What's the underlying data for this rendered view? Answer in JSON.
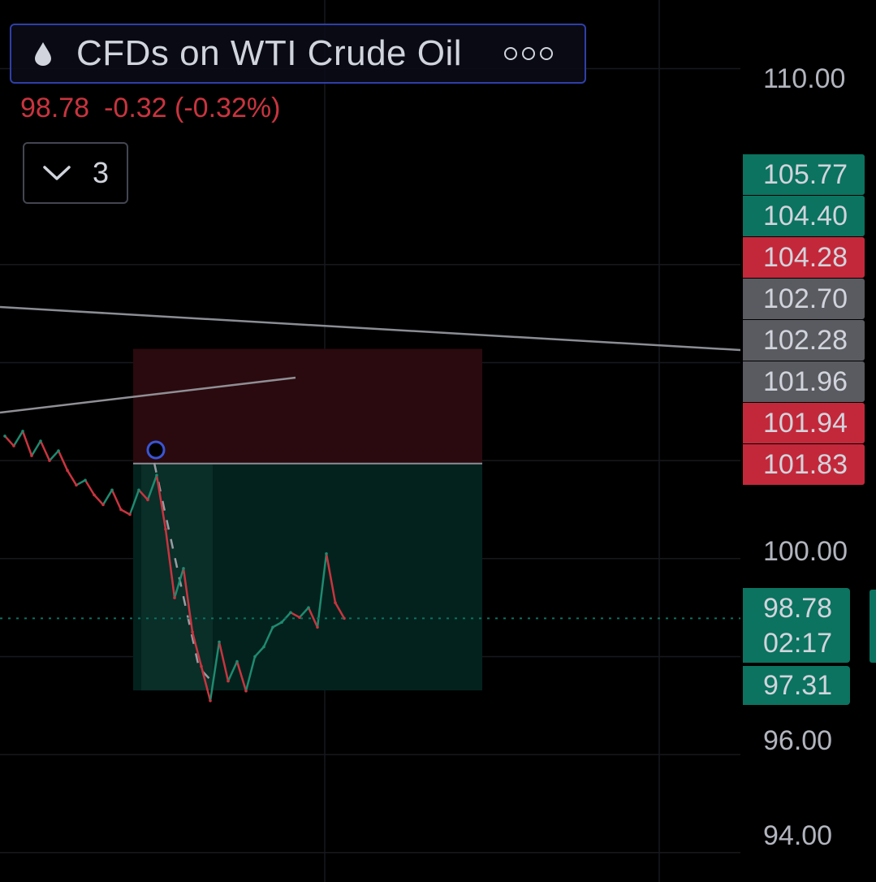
{
  "header": {
    "symbol_icon": "oil-drop-icon",
    "symbol_name": "CFDs on WTI Crude Oil",
    "more_icon": "more-options-icon",
    "last_price": "98.78",
    "change": "-0.32 (-0.32%)",
    "collapse_count": "3"
  },
  "colors": {
    "background": "#000000",
    "down": "#c9343f",
    "up": "#0b7360",
    "neutral_tag": "#5a5b60",
    "accent_border": "#2f3fa8"
  },
  "price_axis": {
    "ticks": [
      "110.00",
      "100.00",
      "96.00",
      "94.00"
    ],
    "tags": [
      {
        "label": "105.77",
        "color": "green"
      },
      {
        "label": "104.40",
        "color": "green"
      },
      {
        "label": "104.28",
        "color": "red"
      },
      {
        "label": "102.70",
        "color": "gray"
      },
      {
        "label": "102.28",
        "color": "gray"
      },
      {
        "label": "101.96",
        "color": "gray"
      },
      {
        "label": "101.94",
        "color": "red"
      },
      {
        "label": "101.83",
        "color": "red"
      }
    ],
    "last_price_tag": "98.78",
    "countdown": "02:17",
    "low_tag": "97.31"
  },
  "chart_data": {
    "type": "line",
    "title": "",
    "xlabel": "",
    "ylabel": "",
    "ylim": [
      93.4,
      111.4
    ],
    "grid": true,
    "series": [
      {
        "values": [
          102.5,
          102.3,
          102.6,
          102.1,
          102.4,
          102.0,
          102.2,
          101.8,
          101.5,
          101.6,
          101.3,
          101.1,
          101.4,
          101.0,
          100.9,
          101.4,
          101.2,
          101.7,
          100.6,
          99.2,
          99.8,
          98.5,
          97.8,
          97.1,
          98.3,
          97.5,
          97.9,
          97.3,
          98.0,
          98.2,
          98.6,
          98.7,
          98.9,
          98.8,
          99.0,
          98.6,
          100.1,
          99.1,
          98.78
        ]
      }
    ],
    "position_tool": {
      "stop_top": 104.28,
      "entry": 101.94,
      "target": 97.31
    },
    "current_price": 98.78
  }
}
